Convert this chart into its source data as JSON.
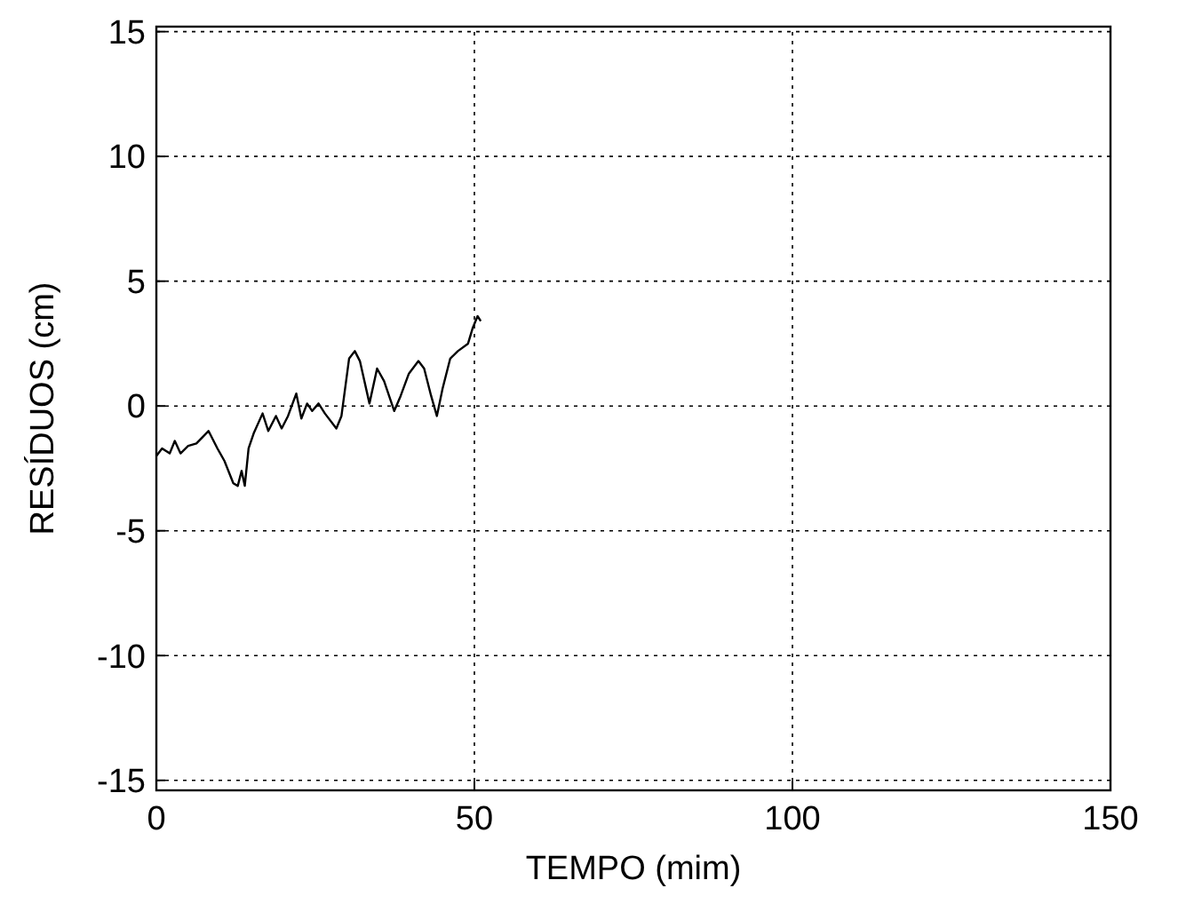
{
  "chart_data": {
    "type": "line",
    "xlabel": "TEMPO (mim)",
    "ylabel": "RESÍDUOS (cm)",
    "xlim": [
      0,
      150
    ],
    "xticks": [
      0,
      50,
      100,
      150
    ],
    "ylim": [
      -15.4,
      15.2
    ],
    "yticks": [
      -15,
      -10,
      -5,
      0,
      5,
      10,
      15
    ],
    "grid": true,
    "line_style": "solid",
    "series": [
      {
        "color": "#000000",
        "x": [
          0,
          0.9,
          2.1,
          2.9,
          3.8,
          5.0,
          6.3,
          8.2,
          9.6,
          10.7,
          12.1,
          12.8,
          13.4,
          13.9,
          14.5,
          15.3,
          16.7,
          17.6,
          18.8,
          19.7,
          20.7,
          22.0,
          22.8,
          23.7,
          24.5,
          25.5,
          26.5,
          28.3,
          29.1,
          30.3,
          31.2,
          32.0,
          33.5,
          34.7,
          35.8,
          37.4,
          38.4,
          39.7,
          41.2,
          42.1,
          43.2,
          44.1,
          45.0,
          46.2,
          47.4,
          49.0,
          49.7,
          50.5,
          51.0
        ],
        "values": [
          -2.0,
          -1.7,
          -1.9,
          -1.4,
          -1.9,
          -1.6,
          -1.5,
          -1.0,
          -1.7,
          -2.2,
          -3.1,
          -3.2,
          -2.6,
          -3.2,
          -1.7,
          -1.1,
          -0.3,
          -1.0,
          -0.4,
          -0.9,
          -0.4,
          0.5,
          -0.5,
          0.1,
          -0.2,
          0.1,
          -0.3,
          -0.9,
          -0.4,
          1.9,
          2.2,
          1.8,
          0.1,
          1.5,
          1.0,
          -0.2,
          0.4,
          1.3,
          1.8,
          1.5,
          0.4,
          -0.4,
          0.7,
          1.9,
          2.2,
          2.5,
          3.1,
          3.6,
          3.4
        ]
      }
    ]
  }
}
